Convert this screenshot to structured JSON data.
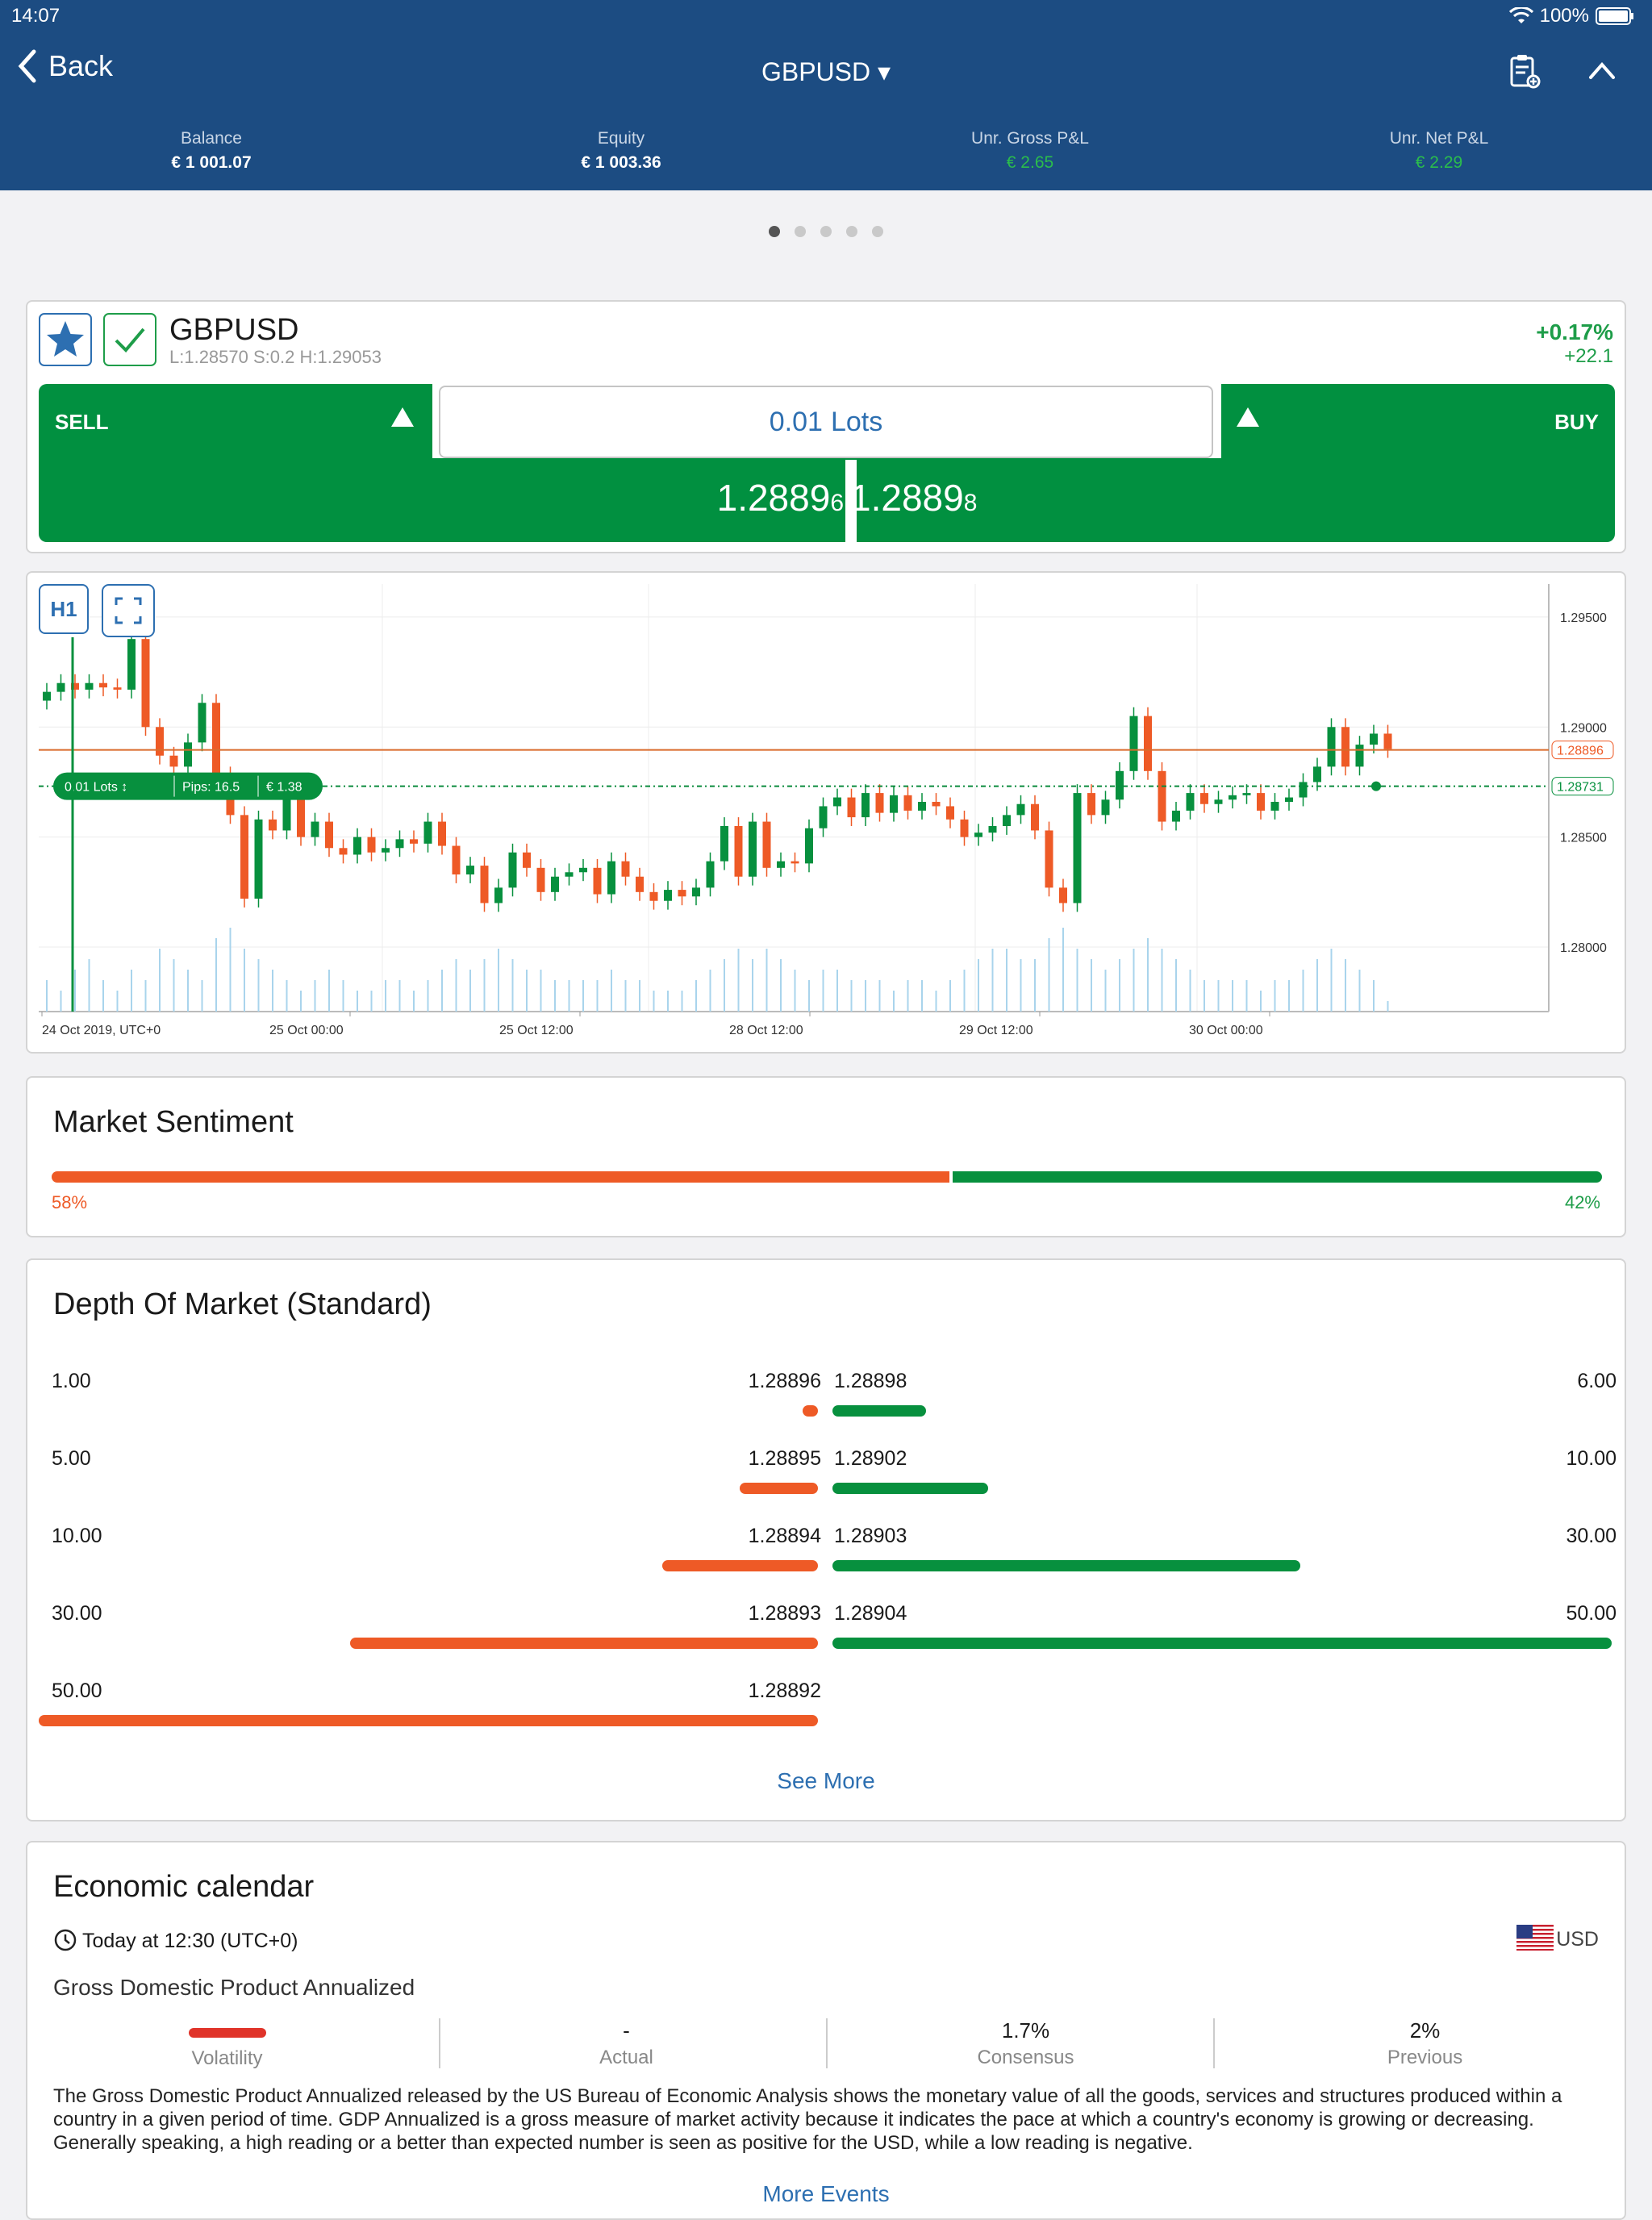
{
  "status": {
    "time": "14:07",
    "battery": "100%"
  },
  "nav": {
    "back": "Back",
    "title": "GBPUSD ▾"
  },
  "account": [
    {
      "label": "Balance",
      "value": "€ 1 001.07"
    },
    {
      "label": "Equity",
      "value": "€ 1 003.36"
    },
    {
      "label": "Unr. Gross P&L",
      "value": "€ 2.65"
    },
    {
      "label": "Unr. Net P&L",
      "value": "€ 2.29"
    }
  ],
  "instrument": {
    "symbol": "GBPUSD",
    "stats": "L:1.28570   S:0.2   H:1.29053",
    "change_pct": "+0.17%",
    "change_pips": "+22.1"
  },
  "trade": {
    "sell": "SELL",
    "buy": "BUY",
    "lots": "0.01",
    "lots_unit": "Lots",
    "sell_main": "1.2889",
    "sell_small": "6",
    "buy_main": "1.2889",
    "buy_small": "8"
  },
  "chart_data": {
    "type": "candlestick",
    "timeframe": "H1",
    "ylim": [
      1.2778,
      1.2965
    ],
    "y_ticks": [
      "1.29500",
      "1.29000",
      "1.28500",
      "1.28000"
    ],
    "x_ticks": [
      "24 Oct 2019, UTC+0",
      "25 Oct 00:00",
      "25 Oct 12:00",
      "28 Oct 12:00",
      "29 Oct 12:00",
      "30 Oct 00:00"
    ],
    "current_price": "1.28896",
    "position_price": "1.28731",
    "position_tag": {
      "lots": "0.01 Lots",
      "pips": "Pips: 16.5",
      "pnl": "€ 1.38"
    },
    "candles": [
      [
        1.2912,
        1.2916
      ],
      [
        1.2916,
        1.292
      ],
      [
        1.292,
        1.2917
      ],
      [
        1.2917,
        1.292
      ],
      [
        1.292,
        1.2918
      ],
      [
        1.2918,
        1.2917
      ],
      [
        1.2917,
        1.294
      ],
      [
        1.294,
        1.29
      ],
      [
        1.29,
        1.2887
      ],
      [
        1.2887,
        1.2882
      ],
      [
        1.2882,
        1.2893
      ],
      [
        1.2893,
        1.2911
      ],
      [
        1.2911,
        1.2878
      ],
      [
        1.2878,
        1.286
      ],
      [
        1.286,
        1.2822
      ],
      [
        1.2822,
        1.2858
      ],
      [
        1.2858,
        1.2853
      ],
      [
        1.2853,
        1.287
      ],
      [
        1.287,
        1.285
      ],
      [
        1.285,
        1.2857
      ],
      [
        1.2857,
        1.2845
      ],
      [
        1.2845,
        1.2842
      ],
      [
        1.2842,
        1.285
      ],
      [
        1.285,
        1.2843
      ],
      [
        1.2843,
        1.2845
      ],
      [
        1.2845,
        1.2849
      ],
      [
        1.2849,
        1.2847
      ],
      [
        1.2847,
        1.2857
      ],
      [
        1.2857,
        1.2846
      ],
      [
        1.2846,
        1.2833
      ],
      [
        1.2833,
        1.2837
      ],
      [
        1.2837,
        1.282
      ],
      [
        1.282,
        1.2827
      ],
      [
        1.2827,
        1.2843
      ],
      [
        1.2843,
        1.2836
      ],
      [
        1.2836,
        1.2825
      ],
      [
        1.2825,
        1.2832
      ],
      [
        1.2832,
        1.2834
      ],
      [
        1.2834,
        1.2836
      ],
      [
        1.2836,
        1.2824
      ],
      [
        1.2824,
        1.2839
      ],
      [
        1.2839,
        1.2832
      ],
      [
        1.2832,
        1.2825
      ],
      [
        1.2825,
        1.2821
      ],
      [
        1.2821,
        1.2826
      ],
      [
        1.2826,
        1.2823
      ],
      [
        1.2823,
        1.2827
      ],
      [
        1.2827,
        1.2839
      ],
      [
        1.2839,
        1.2855
      ],
      [
        1.2855,
        1.2832
      ],
      [
        1.2832,
        1.2857
      ],
      [
        1.2857,
        1.2836
      ],
      [
        1.2836,
        1.2839
      ],
      [
        1.2839,
        1.2838
      ],
      [
        1.2838,
        1.2854
      ],
      [
        1.2854,
        1.2864
      ],
      [
        1.2864,
        1.2868
      ],
      [
        1.2868,
        1.2859
      ],
      [
        1.2859,
        1.287
      ],
      [
        1.287,
        1.2861
      ],
      [
        1.2861,
        1.2869
      ],
      [
        1.2869,
        1.2862
      ],
      [
        1.2862,
        1.2866
      ],
      [
        1.2866,
        1.2864
      ],
      [
        1.2864,
        1.2858
      ],
      [
        1.2858,
        1.285
      ],
      [
        1.285,
        1.2852
      ],
      [
        1.2852,
        1.2855
      ],
      [
        1.2855,
        1.286
      ],
      [
        1.286,
        1.2865
      ],
      [
        1.2865,
        1.2853
      ],
      [
        1.2853,
        1.2827
      ],
      [
        1.2827,
        1.282
      ],
      [
        1.282,
        1.287
      ],
      [
        1.287,
        1.286
      ],
      [
        1.286,
        1.2867
      ],
      [
        1.2867,
        1.288
      ],
      [
        1.288,
        1.2905
      ],
      [
        1.2905,
        1.288
      ],
      [
        1.288,
        1.2857
      ],
      [
        1.2857,
        1.2862
      ],
      [
        1.2862,
        1.287
      ],
      [
        1.287,
        1.2865
      ],
      [
        1.2865,
        1.2867
      ],
      [
        1.2867,
        1.2869
      ],
      [
        1.2869,
        1.287
      ],
      [
        1.287,
        1.2862
      ],
      [
        1.2862,
        1.2866
      ],
      [
        1.2866,
        1.2868
      ],
      [
        1.2868,
        1.2875
      ],
      [
        1.2875,
        1.2882
      ],
      [
        1.2882,
        1.29
      ],
      [
        1.29,
        1.2882
      ],
      [
        1.2882,
        1.2892
      ],
      [
        1.2892,
        1.2897
      ],
      [
        1.2897,
        1.289
      ]
    ],
    "volumes": [
      3,
      2,
      4,
      5,
      3,
      2,
      4,
      3,
      6,
      5,
      4,
      3,
      7,
      8,
      6,
      5,
      4,
      3,
      2,
      3,
      4,
      3,
      2,
      2,
      3,
      3,
      2,
      3,
      4,
      5,
      4,
      5,
      6,
      5,
      4,
      4,
      3,
      3,
      3,
      3,
      4,
      3,
      3,
      2,
      2,
      2,
      3,
      4,
      5,
      6,
      5,
      6,
      5,
      4,
      3,
      4,
      4,
      3,
      3,
      3,
      2,
      3,
      3,
      2,
      3,
      4,
      5,
      6,
      6,
      5,
      5,
      7,
      8,
      6,
      5,
      4,
      5,
      6,
      7,
      6,
      5,
      4,
      3,
      3,
      3,
      3,
      2,
      3,
      3,
      4,
      5,
      6,
      5,
      4,
      3,
      1
    ]
  },
  "sentiment": {
    "title": "Market Sentiment",
    "sell_pct": 58,
    "buy_pct": 42,
    "sell_label": "58%",
    "buy_label": "42%"
  },
  "dom": {
    "title": "Depth Of Market (Standard)",
    "see_more": "See More",
    "rows": [
      {
        "sell_qty": "1.00",
        "sell_price": "1.28896",
        "buy_price": "1.28898",
        "buy_qty": "6.00",
        "sell_frac": 0.02,
        "buy_frac": 0.12
      },
      {
        "sell_qty": "5.00",
        "sell_price": "1.28895",
        "buy_price": "1.28902",
        "buy_qty": "10.00",
        "sell_frac": 0.1,
        "buy_frac": 0.2
      },
      {
        "sell_qty": "10.00",
        "sell_price": "1.28894",
        "buy_price": "1.28903",
        "buy_qty": "30.00",
        "sell_frac": 0.2,
        "buy_frac": 0.6
      },
      {
        "sell_qty": "30.00",
        "sell_price": "1.28893",
        "buy_price": "1.28904",
        "buy_qty": "50.00",
        "sell_frac": 0.6,
        "buy_frac": 1.0
      },
      {
        "sell_qty": "50.00",
        "sell_price": "1.28892",
        "buy_price": "",
        "buy_qty": "",
        "sell_frac": 1.0,
        "buy_frac": 0
      }
    ]
  },
  "calendar": {
    "title": "Economic calendar",
    "time": "Today at 12:30 (UTC+0)",
    "currency": "USD",
    "event": "Gross Domestic Product Annualized",
    "cols": [
      {
        "value": "",
        "label": "Volatility"
      },
      {
        "value": "-",
        "label": "Actual"
      },
      {
        "value": "1.7%",
        "label": "Consensus"
      },
      {
        "value": "2%",
        "label": "Previous"
      }
    ],
    "description": "The Gross Domestic Product Annualized released by the US Bureau of Economic Analysis shows the monetary value of all the goods, services and structures produced within a country in a given period of time. GDP Annualized is a gross measure of market activity because it indicates the pace at which a country's economy is growing or decreasing. Generally speaking, a high reading or a better than expected number is seen as positive for the USD, while a low reading is negative.",
    "more": "More Events"
  }
}
